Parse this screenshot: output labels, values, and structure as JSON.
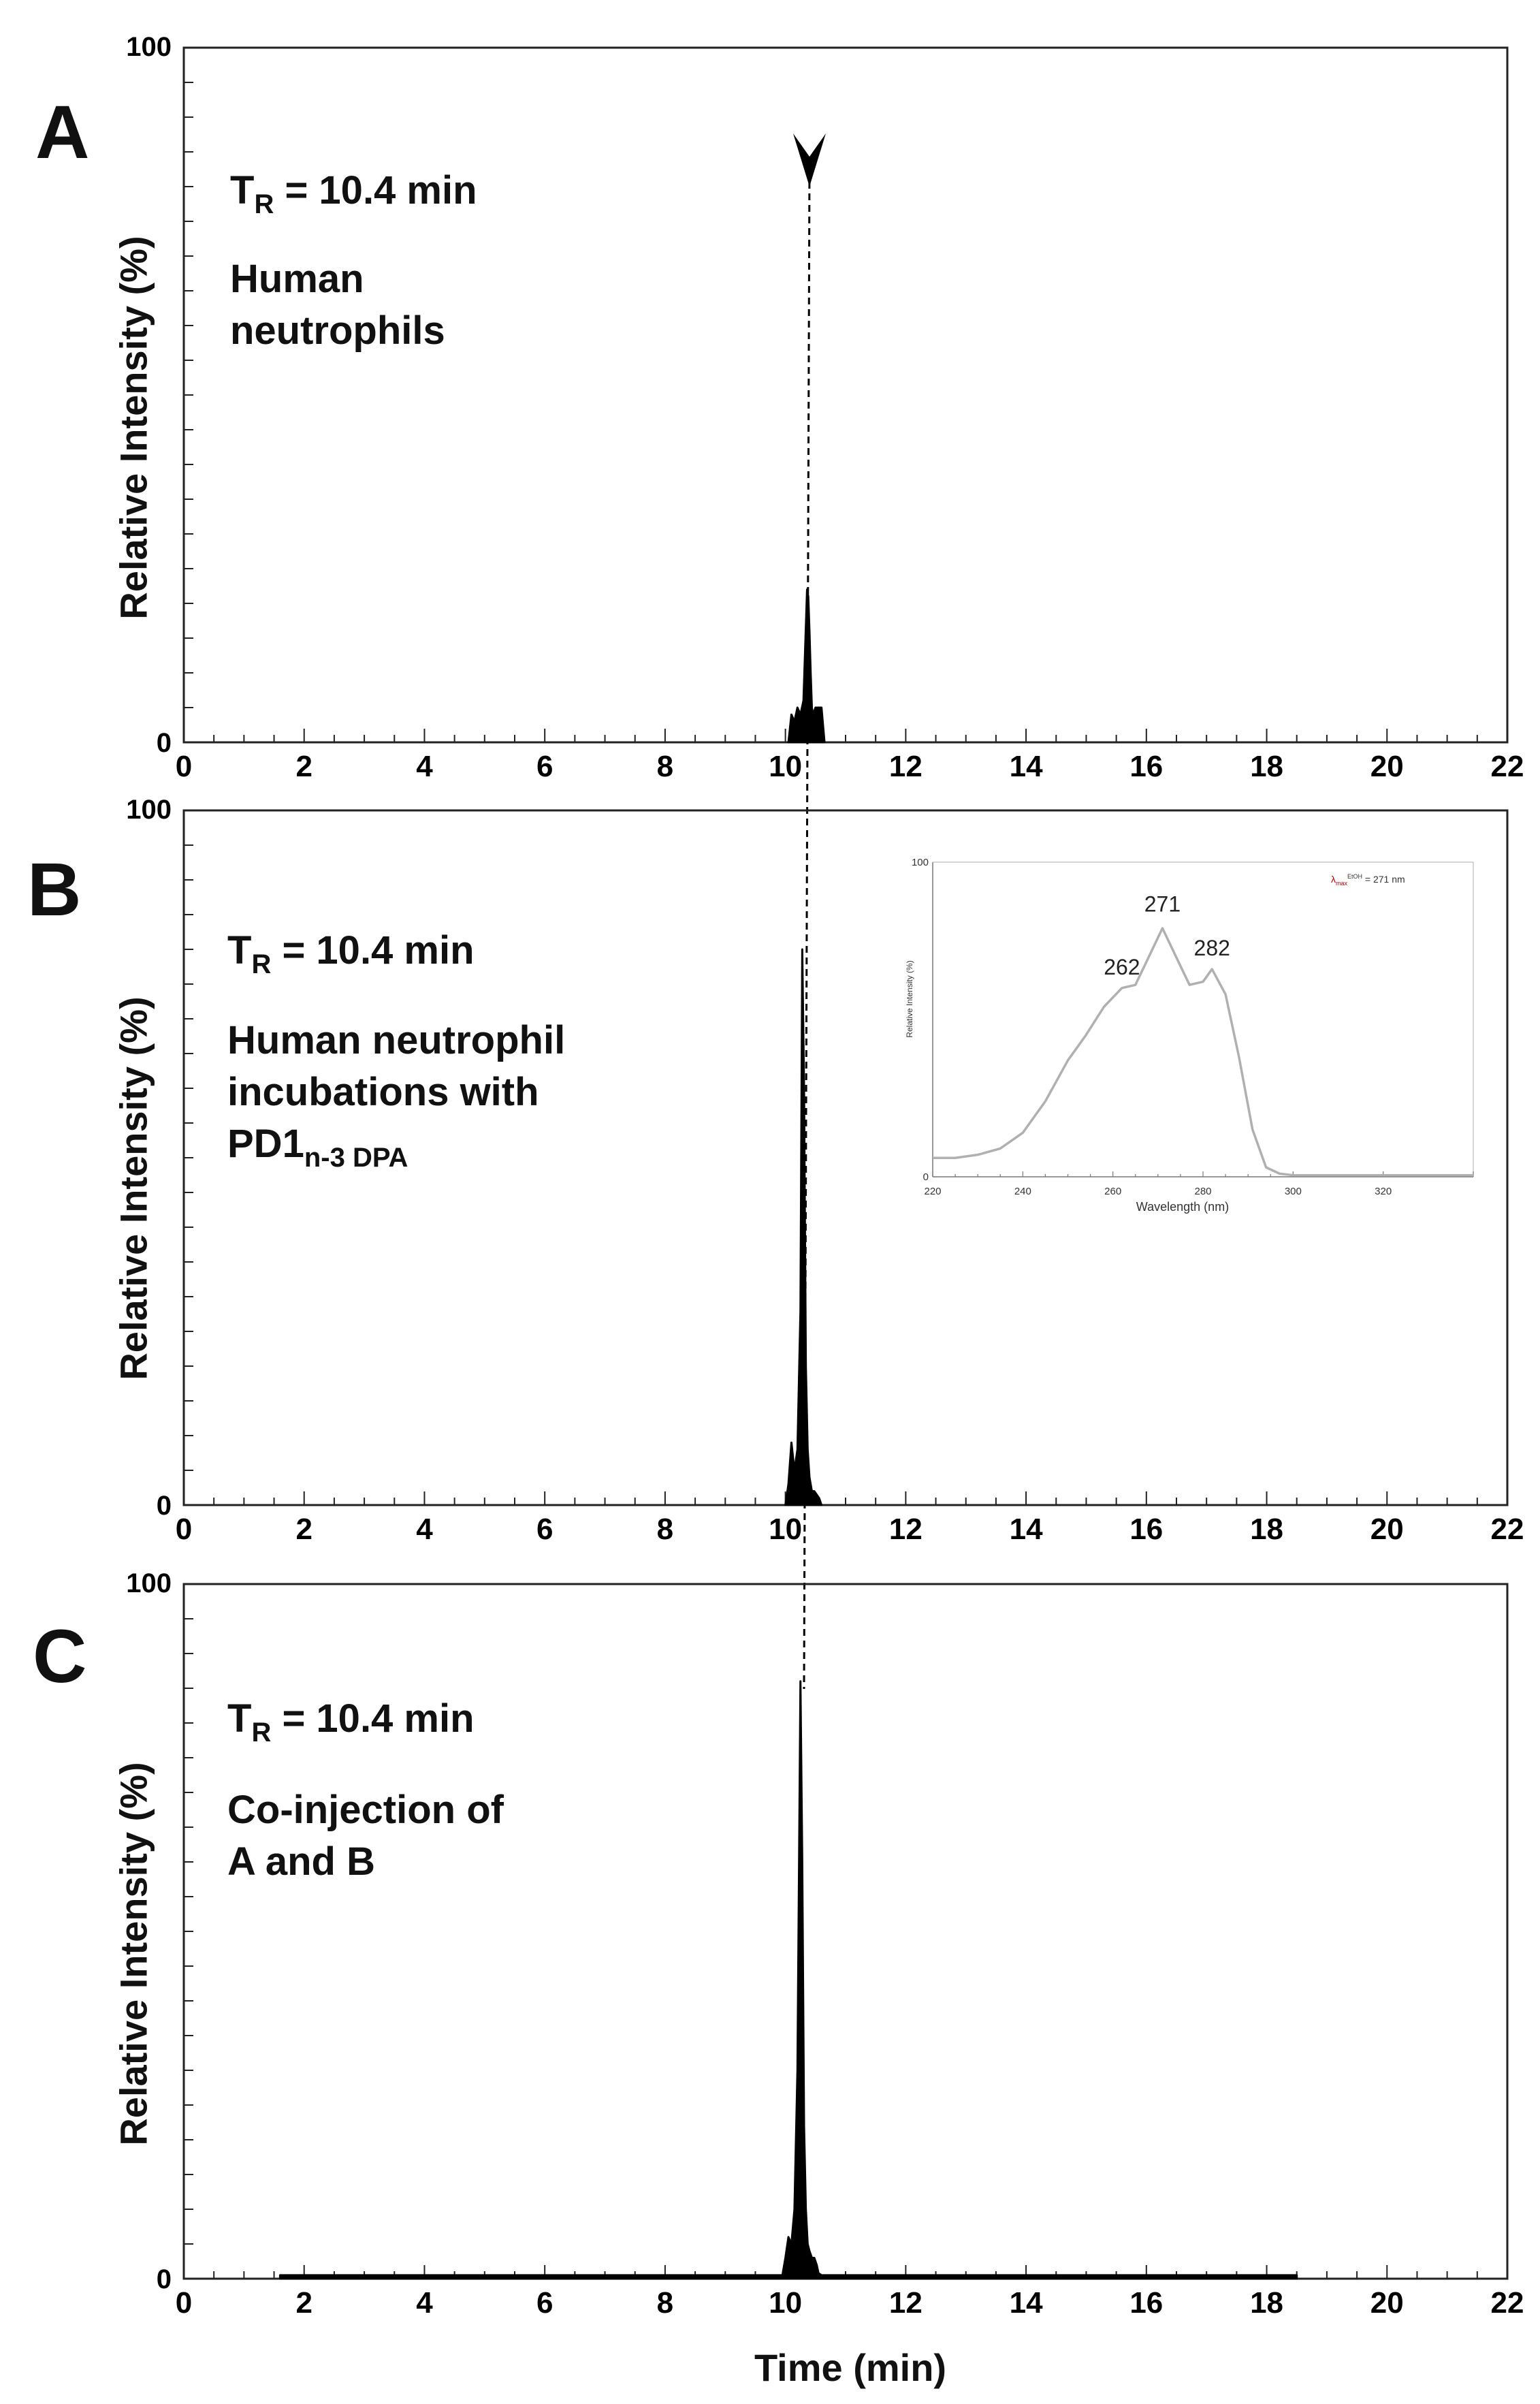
{
  "colors": {
    "axis": "#222222",
    "trace": "#000000",
    "spectrum": "#b0b0b0",
    "lambda_symbol": "#c00000"
  },
  "chart_data": [
    {
      "type": "area",
      "panel": "A",
      "title": "Human neutrophils",
      "annotation": {
        "tr_prefix": "T",
        "tr_sub": "R",
        "tr_value": " = 10.4 min",
        "lines": "Human\nneutrophils"
      },
      "xlabel": "",
      "ylabel": "Relative Intensity (%)",
      "xlim": [
        0,
        22
      ],
      "ylim": [
        0,
        100
      ],
      "xticks": [
        "0",
        "2",
        "4",
        "6",
        "8",
        "10",
        "12",
        "14",
        "16",
        "18",
        "20",
        "22"
      ],
      "ytick_labels": {
        "top": "100",
        "bottom": "0"
      },
      "peak_marker": {
        "x": 10.4,
        "symbol": "arrowhead"
      },
      "series": [
        {
          "name": "chromatogram",
          "x": [
            10.05,
            10.1,
            10.15,
            10.2,
            10.25,
            10.3,
            10.33,
            10.36,
            10.38,
            10.4,
            10.42,
            10.44,
            10.46,
            10.5,
            10.55,
            10.6,
            10.65
          ],
          "y": [
            0,
            4,
            3,
            5,
            4,
            6,
            14,
            22,
            21,
            16,
            10,
            5,
            4,
            5,
            5,
            5,
            0
          ]
        }
      ]
    },
    {
      "type": "area",
      "panel": "B",
      "title": "Human neutrophil incubations with PD1n-3 DPA",
      "annotation": {
        "tr_prefix": "T",
        "tr_sub": "R",
        "tr_value": " = 10.4 min",
        "lines": "Human neutrophil\nincubations with",
        "line3_main": "PD1",
        "line3_sub": "n-3 DPA"
      },
      "xlabel": "",
      "ylabel": "Relative Intensity (%)",
      "xlim": [
        0,
        22
      ],
      "ylim": [
        0,
        100
      ],
      "xticks": [
        "0",
        "2",
        "4",
        "6",
        "8",
        "10",
        "12",
        "14",
        "16",
        "18",
        "20",
        "22"
      ],
      "ytick_labels": {
        "top": "100",
        "bottom": "0"
      },
      "series": [
        {
          "name": "chromatogram",
          "x": [
            10.0,
            10.05,
            10.1,
            10.15,
            10.2,
            10.25,
            10.28,
            10.31,
            10.34,
            10.37,
            10.4,
            10.44,
            10.48,
            10.52,
            10.56,
            10.6
          ],
          "y": [
            0,
            3,
            9,
            5,
            8,
            28,
            80,
            60,
            20,
            8,
            4,
            2,
            2,
            1.5,
            1,
            0
          ]
        }
      ],
      "inset": {
        "type": "line",
        "xlabel": "Wavelength (nm)",
        "ylabel": "Relative Intensity (%)",
        "legend_lambda": "λ",
        "legend_sub": "max",
        "legend_sup": "EtOH",
        "legend_value": " = 271 nm",
        "xlim": [
          220,
          340
        ],
        "ylim": [
          0,
          100
        ],
        "xticks": [
          "220",
          "240",
          "260",
          "280",
          "300",
          "320"
        ],
        "ytick_labels": {
          "top": "100",
          "bottom": "0"
        },
        "peak_labels": [
          {
            "x": 262,
            "y": 60,
            "label": "262"
          },
          {
            "x": 271,
            "y": 80,
            "label": "271"
          },
          {
            "x": 282,
            "y": 66,
            "label": "282"
          }
        ],
        "x": [
          220,
          225,
          230,
          235,
          240,
          245,
          250,
          254,
          258,
          262,
          265,
          268,
          271,
          274,
          277,
          280,
          282,
          285,
          288,
          291,
          294,
          297,
          300,
          310,
          320,
          330,
          340
        ],
        "y": [
          6,
          6,
          7,
          9,
          14,
          24,
          37,
          45,
          54,
          60,
          61,
          70,
          79,
          70,
          61,
          62,
          66,
          58,
          38,
          15,
          3,
          1,
          0.5,
          0.5,
          0.5,
          0.5,
          0.5
        ]
      }
    },
    {
      "type": "area",
      "panel": "C",
      "title": "Co-injection of A and B",
      "annotation": {
        "tr_prefix": "T",
        "tr_sub": "R",
        "tr_value": " = 10.4 min",
        "lines": "Co-injection of\nA and B"
      },
      "xlabel": "Time (min)",
      "ylabel": "Relative Intensity (%)",
      "xlim": [
        0,
        22
      ],
      "ylim": [
        0,
        100
      ],
      "xticks": [
        "0",
        "2",
        "4",
        "6",
        "8",
        "10",
        "12",
        "14",
        "16",
        "18",
        "20",
        "22"
      ],
      "ytick_labels": {
        "top": "100",
        "bottom": "0"
      },
      "series": [
        {
          "name": "chromatogram",
          "x": [
            1.6,
            9.95,
            10.0,
            10.05,
            10.1,
            10.15,
            10.2,
            10.25,
            10.28,
            10.31,
            10.34,
            10.37,
            10.4,
            10.44,
            10.48,
            10.52,
            10.55,
            10.6,
            18.5
          ],
          "y": [
            0.5,
            0.5,
            3,
            6,
            5,
            10,
            30,
            86,
            60,
            22,
            10,
            5,
            4,
            3,
            3,
            2,
            0.8,
            0.5,
            0.5
          ]
        }
      ]
    }
  ]
}
